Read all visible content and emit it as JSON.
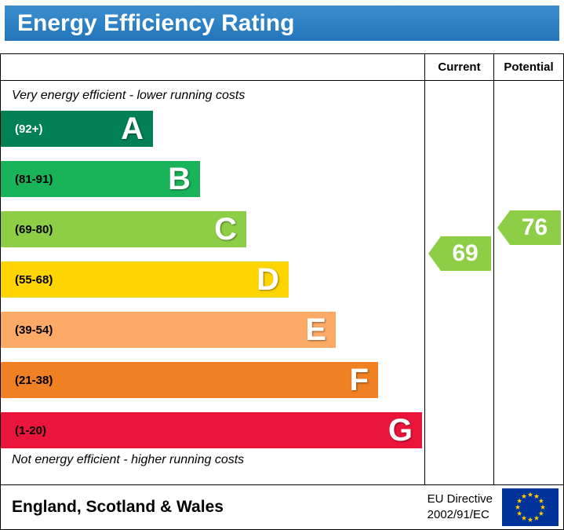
{
  "header": {
    "title": "Energy Efficiency Rating"
  },
  "table": {
    "current_column": "Current",
    "potential_column": "Potential"
  },
  "notes": {
    "top": "Very energy efficient - lower running costs",
    "bottom": "Not energy efficient - higher running costs"
  },
  "footer": {
    "region": "England, Scotland & Wales",
    "directive_line1": "EU Directive",
    "directive_line2": "2002/91/EC"
  },
  "chart_data": {
    "type": "bar",
    "title": "Energy Efficiency Rating",
    "categories": [
      "A",
      "B",
      "C",
      "D",
      "E",
      "F",
      "G"
    ],
    "bands": [
      {
        "letter": "A",
        "range": "(92+)",
        "color": "#008054",
        "range_color": "#ffffff",
        "width_pct": 36
      },
      {
        "letter": "B",
        "range": "(81-91)",
        "color": "#19b459",
        "range_color": "#000000",
        "width_pct": 47
      },
      {
        "letter": "C",
        "range": "(69-80)",
        "color": "#8dce46",
        "range_color": "#000000",
        "width_pct": 58
      },
      {
        "letter": "D",
        "range": "(55-68)",
        "color": "#ffd500",
        "range_color": "#000000",
        "width_pct": 68
      },
      {
        "letter": "E",
        "range": "(39-54)",
        "color": "#fcaa65",
        "range_color": "#000000",
        "width_pct": 79
      },
      {
        "letter": "F",
        "range": "(21-38)",
        "color": "#ef8023",
        "range_color": "#000000",
        "width_pct": 89
      },
      {
        "letter": "G",
        "range": "(1-20)",
        "color": "#e9153b",
        "range_color": "#000000",
        "width_pct": 99.5
      }
    ],
    "current": {
      "value": 69,
      "color": "#8dce46"
    },
    "potential": {
      "value": 76,
      "color": "#8dce46"
    }
  }
}
